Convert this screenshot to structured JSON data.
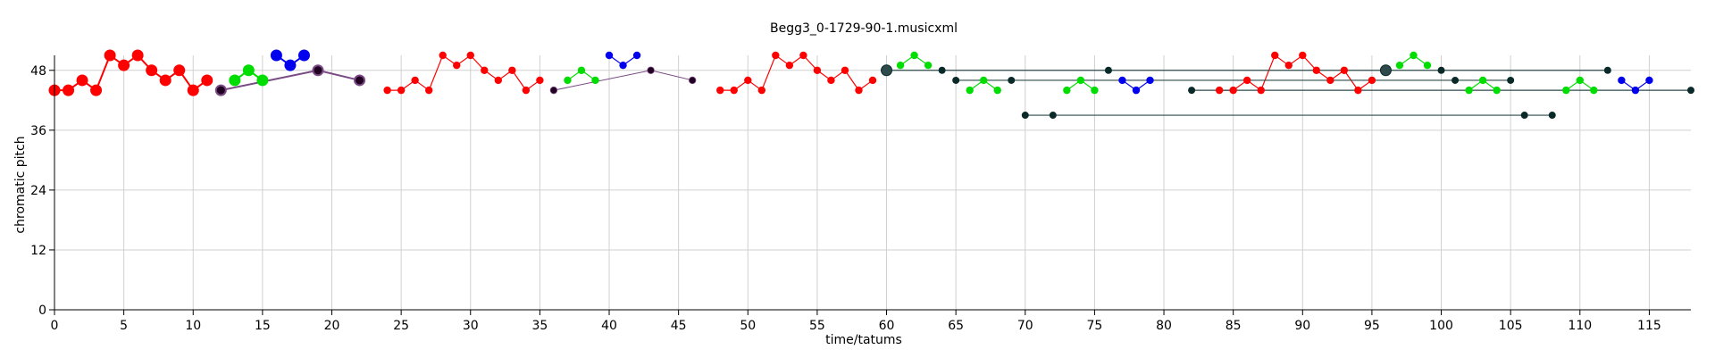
{
  "chart_data": {
    "type": "scatter",
    "title": "Begg3_0-1729-90-1.musicxml",
    "xlabel": "time/tatums",
    "ylabel": "chromatic pitch",
    "xlim": [
      0,
      118
    ],
    "ylim": [
      0,
      51
    ],
    "x_ticks": [
      0,
      5,
      10,
      15,
      20,
      25,
      30,
      35,
      40,
      45,
      50,
      55,
      60,
      65,
      70,
      75,
      80,
      85,
      90,
      95,
      100,
      105,
      110,
      115
    ],
    "y_ticks": [
      0,
      12,
      24,
      36,
      48
    ],
    "grid": true,
    "colors": {
      "red": "#ff0000",
      "green": "#00dd00",
      "blue": "#0000ee",
      "purple_line": "#7a4a84",
      "dark_dot": "#220022",
      "teal_line": "#2e4a4a",
      "teal_dot": "#0a2a2a",
      "grid": "#d0d0d0"
    },
    "series": [
      {
        "color": "red",
        "size": "large",
        "x": [
          0,
          1,
          2,
          3,
          4,
          5,
          6,
          7,
          8,
          9,
          10,
          11
        ],
        "y": [
          44,
          44,
          46,
          44,
          51,
          49,
          51,
          48,
          46,
          48,
          44,
          46
        ]
      },
      {
        "color": "green",
        "size": "large",
        "x": [
          13,
          14,
          15
        ],
        "y": [
          46,
          48,
          46
        ]
      },
      {
        "color": "blue",
        "size": "large",
        "x": [
          16,
          17,
          18
        ],
        "y": [
          51,
          49,
          51
        ]
      },
      {
        "color": "purple",
        "size": "large",
        "x": [
          12,
          19,
          22
        ],
        "y": [
          44,
          48,
          46
        ]
      },
      {
        "color": "red",
        "size": "small",
        "x": [
          24,
          25,
          26,
          27,
          28,
          29,
          30,
          31,
          32,
          33,
          34,
          35
        ],
        "y": [
          44,
          44,
          46,
          44,
          51,
          49,
          51,
          48,
          46,
          48,
          44,
          46
        ]
      },
      {
        "color": "green",
        "size": "small",
        "x": [
          37,
          38,
          39
        ],
        "y": [
          46,
          48,
          46
        ]
      },
      {
        "color": "blue",
        "size": "small",
        "x": [
          40,
          41,
          42
        ],
        "y": [
          51,
          49,
          51
        ]
      },
      {
        "color": "purple",
        "size": "small",
        "x": [
          36,
          43,
          46
        ],
        "y": [
          44,
          48,
          46
        ]
      },
      {
        "color": "red",
        "size": "small",
        "x": [
          48,
          49,
          50,
          51,
          52,
          53,
          54,
          55,
          56,
          57,
          58,
          59
        ],
        "y": [
          44,
          44,
          46,
          44,
          51,
          49,
          51,
          48,
          46,
          48,
          44,
          46
        ]
      },
      {
        "color": "green",
        "size": "small",
        "x": [
          61,
          62,
          63
        ],
        "y": [
          49,
          51,
          49
        ]
      },
      {
        "color": "green",
        "size": "small",
        "x": [
          66,
          67,
          68
        ],
        "y": [
          44,
          46,
          44
        ]
      },
      {
        "color": "green",
        "size": "small",
        "x": [
          73,
          74,
          75
        ],
        "y": [
          44,
          46,
          44
        ]
      },
      {
        "color": "blue",
        "size": "small",
        "x": [
          77,
          78,
          79
        ],
        "y": [
          46,
          44,
          46
        ]
      },
      {
        "color": "red",
        "size": "small",
        "x": [
          84,
          85,
          86,
          87,
          88,
          89,
          90,
          91,
          92,
          93,
          94,
          95
        ],
        "y": [
          44,
          44,
          46,
          44,
          51,
          49,
          51,
          48,
          46,
          48,
          44,
          46
        ]
      },
      {
        "color": "green",
        "size": "small",
        "x": [
          97,
          98,
          99
        ],
        "y": [
          49,
          51,
          49
        ]
      },
      {
        "color": "green",
        "size": "small",
        "x": [
          102,
          103,
          104
        ],
        "y": [
          44,
          46,
          44
        ]
      },
      {
        "color": "green",
        "size": "small",
        "x": [
          109,
          110,
          111
        ],
        "y": [
          44,
          46,
          44
        ]
      },
      {
        "color": "blue",
        "size": "small",
        "x": [
          113,
          114,
          115
        ],
        "y": [
          46,
          44,
          46
        ]
      }
    ],
    "connections": [
      {
        "x": [
          60,
          64,
          76,
          96,
          100,
          112
        ],
        "y": [
          48,
          48,
          48,
          48,
          48,
          48
        ]
      },
      {
        "x": [
          65,
          69,
          101,
          105
        ],
        "y": [
          46,
          46,
          46,
          46
        ]
      },
      {
        "x": [
          82,
          118
        ],
        "y": [
          44,
          44
        ]
      },
      {
        "x": [
          70,
          72,
          106,
          108
        ],
        "y": [
          39,
          39,
          39,
          39
        ]
      }
    ],
    "large_connection_points": [
      {
        "x": 60,
        "y": 48
      },
      {
        "x": 96,
        "y": 48
      }
    ]
  }
}
